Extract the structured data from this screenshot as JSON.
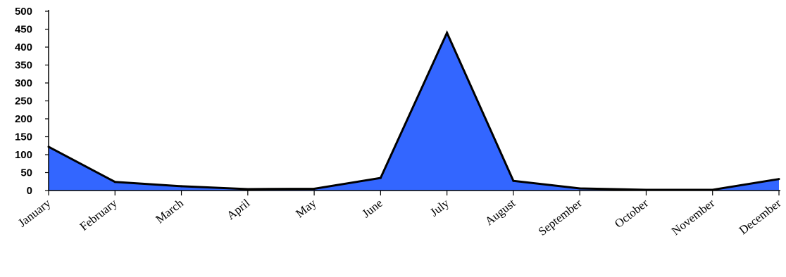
{
  "chart_data": {
    "type": "area",
    "title": "",
    "xlabel": "",
    "ylabel": "",
    "categories": [
      "January",
      "February",
      "March",
      "April",
      "May",
      "June",
      "July",
      "August",
      "September",
      "October",
      "November",
      "December"
    ],
    "series": [
      {
        "values": [
          122,
          24,
          12,
          4,
          5,
          35,
          440,
          27,
          6,
          2,
          2,
          32
        ]
      }
    ],
    "ylim": [
      0,
      500
    ],
    "yticks": [
      0,
      50,
      100,
      150,
      200,
      250,
      300,
      350,
      400,
      450,
      500
    ],
    "grid": false,
    "legend": "none",
    "fill_color": "#3366ff",
    "line_color": "#000000"
  }
}
